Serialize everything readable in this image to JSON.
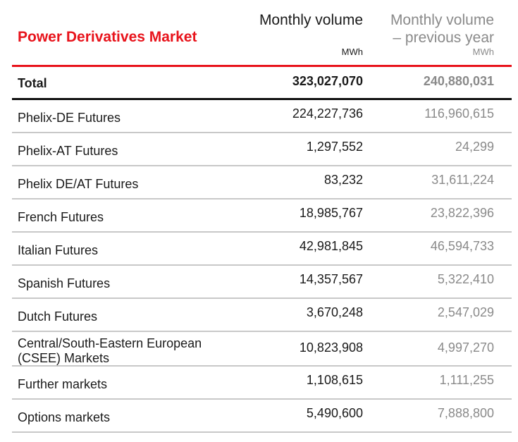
{
  "header": {
    "title": "Power Derivatives Market",
    "col1_line1": "Monthly volume",
    "col1_unit": "MWh",
    "col2_line1": "Monthly volume",
    "col2_line2": "– previous year",
    "col2_unit": "MWh"
  },
  "total": {
    "label": "Total",
    "current": "323,027,070",
    "previous": "240,880,031"
  },
  "rows": [
    {
      "label": "Phelix-DE Futures",
      "label2": "",
      "current": "224,227,736",
      "previous": "116,960,615"
    },
    {
      "label": "Phelix-AT Futures",
      "label2": "",
      "current": "1,297,552",
      "previous": "24,299"
    },
    {
      "label": "Phelix DE/AT Futures",
      "label2": "",
      "current": "83,232",
      "previous": "31,611,224"
    },
    {
      "label": "French Futures",
      "label2": "",
      "current": "18,985,767",
      "previous": "23,822,396"
    },
    {
      "label": "Italian Futures",
      "label2": "",
      "current": "42,981,845",
      "previous": "46,594,733"
    },
    {
      "label": "Spanish Futures",
      "label2": "",
      "current": "14,357,567",
      "previous": "5,322,410"
    },
    {
      "label": "Dutch Futures",
      "label2": "",
      "current": "3,670,248",
      "previous": "2,547,029"
    },
    {
      "label": "Central/South-Eastern European",
      "label2": "(CSEE) Markets",
      "current": "10,823,908",
      "previous": "4,997,270"
    },
    {
      "label": "Further markets",
      "label2": "",
      "current": "1,108,615",
      "previous": "1,111,255"
    },
    {
      "label": "Options markets",
      "label2": "",
      "current": "5,490,600",
      "previous": "7,888,800"
    }
  ],
  "colors": {
    "accent_red": "#e8141c",
    "muted_text": "#8a8a8a",
    "rule_gray": "#c8c8c8"
  }
}
